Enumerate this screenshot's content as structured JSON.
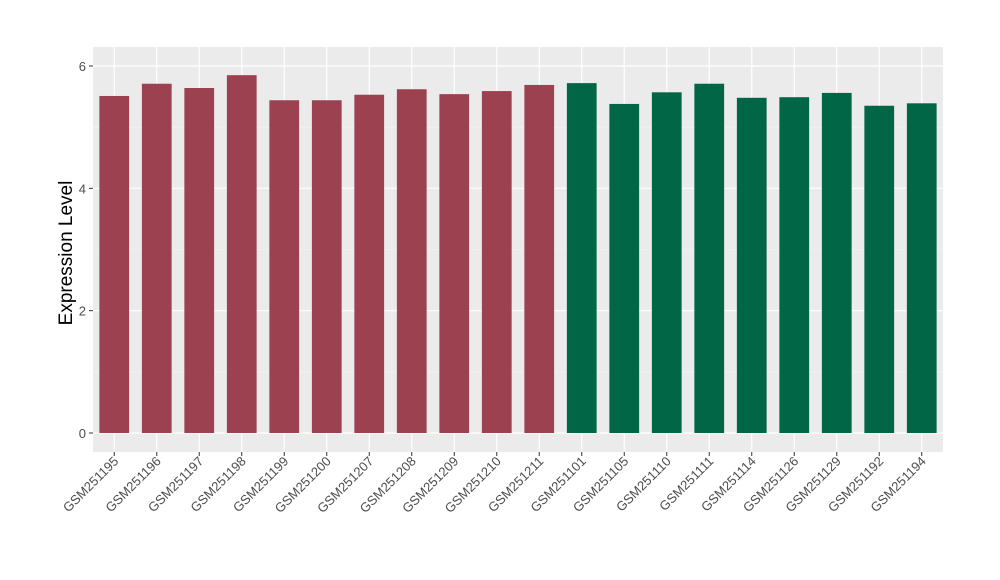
{
  "chart_data": {
    "type": "bar",
    "title": "",
    "xlabel": "",
    "ylabel": "Expression Level",
    "ylim": [
      -0.3,
      6.3
    ],
    "yticks": [
      0,
      2,
      4,
      6
    ],
    "grid": true,
    "categories": [
      "GSM251195",
      "GSM251196",
      "GSM251197",
      "GSM251198",
      "GSM251199",
      "GSM251200",
      "GSM251207",
      "GSM251208",
      "GSM251209",
      "GSM251210",
      "GSM251211",
      "GSM251101",
      "GSM251105",
      "GSM251110",
      "GSM251111",
      "GSM251114",
      "GSM251126",
      "GSM251129",
      "GSM251192",
      "GSM251194"
    ],
    "values": [
      5.51,
      5.71,
      5.64,
      5.85,
      5.44,
      5.44,
      5.53,
      5.62,
      5.54,
      5.59,
      5.69,
      5.72,
      5.38,
      5.57,
      5.71,
      5.48,
      5.49,
      5.56,
      5.35,
      5.39
    ],
    "groups": [
      0,
      0,
      0,
      0,
      0,
      0,
      0,
      0,
      0,
      0,
      0,
      1,
      1,
      1,
      1,
      1,
      1,
      1,
      1,
      1
    ],
    "colors": [
      "#9b4150",
      "#006646"
    ],
    "panel_background": "#ebebeb"
  }
}
